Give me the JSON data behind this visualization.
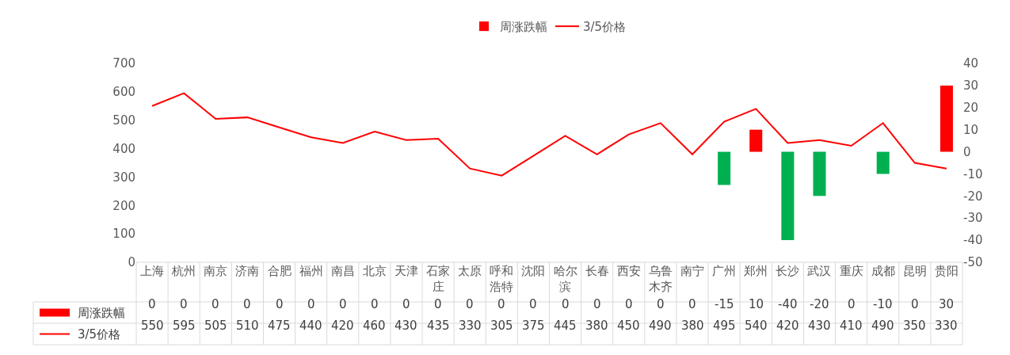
{
  "chart_data": {
    "type": "bar",
    "categories": [
      "上海",
      "杭州",
      "南京",
      "济南",
      "合肥",
      "福州",
      "南昌",
      "北京",
      "天津",
      "石家庄",
      "太原",
      "呼和浩特",
      "沈阳",
      "哈尔滨",
      "长春",
      "西安",
      "乌鲁木齐",
      "南宁",
      "广州",
      "郑州",
      "长沙",
      "武汉",
      "重庆",
      "成都",
      "昆明",
      "贵阳"
    ],
    "series": [
      {
        "name": "周涨跌幅",
        "axis": "y2",
        "colors": [
          "#ff0000",
          "#ff0000",
          "#ff0000",
          "#ff0000",
          "#ff0000",
          "#ff0000",
          "#ff0000",
          "#ff0000",
          "#ff0000",
          "#ff0000",
          "#ff0000",
          "#ff0000",
          "#ff0000",
          "#ff0000",
          "#ff0000",
          "#ff0000",
          "#ff0000",
          "#ff0000",
          "#00b050",
          "#ff0000",
          "#00b050",
          "#00b050",
          "#ff0000",
          "#00b050",
          "#ff0000",
          "#ff0000"
        ],
        "color": "#ff0000",
        "values": [
          0,
          0,
          0,
          0,
          0,
          0,
          0,
          0,
          0,
          0,
          0,
          0,
          0,
          0,
          0,
          0,
          0,
          0,
          -15,
          10,
          -40,
          -20,
          0,
          -10,
          0,
          30
        ]
      },
      {
        "name": "3/5价格",
        "type": "line",
        "axis": "y",
        "color": "#ff0000",
        "values": [
          550,
          595,
          505,
          510,
          475,
          440,
          420,
          460,
          430,
          435,
          330,
          305,
          375,
          445,
          380,
          450,
          490,
          380,
          495,
          540,
          420,
          430,
          410,
          490,
          350,
          330
        ]
      }
    ],
    "ylim": [
      0,
      700
    ],
    "yticks": [
      0,
      100,
      200,
      300,
      400,
      500,
      600,
      700
    ],
    "y2lim": [
      -50,
      40
    ],
    "y2ticks": [
      -50,
      -40,
      -30,
      -20,
      -10,
      0,
      10,
      20,
      30,
      40
    ],
    "legend": "top",
    "data_labels": true,
    "marker": "none",
    "line_style": "solid"
  }
}
